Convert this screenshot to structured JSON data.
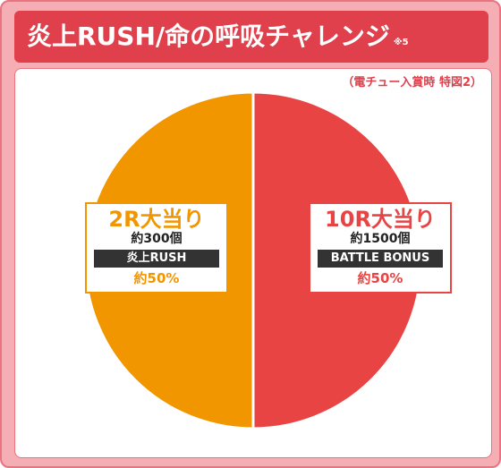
{
  "title": {
    "main": "炎上RUSH/命の呼吸チャレンジ",
    "note": "※5"
  },
  "subtitle": "（電チュー入賞時 特図2）",
  "chart_data": {
    "type": "pie",
    "slices": [
      {
        "id": "left",
        "label": "2R大当り",
        "amount": "約300個",
        "tag": "炎上RUSH",
        "percent_label": "約50%",
        "value": 50,
        "color": "#f29600"
      },
      {
        "id": "right",
        "label": "10R大当り",
        "amount": "約1500個",
        "tag": "BATTLE BONUS",
        "percent_label": "約50%",
        "value": 50,
        "color": "#e84444"
      }
    ]
  }
}
